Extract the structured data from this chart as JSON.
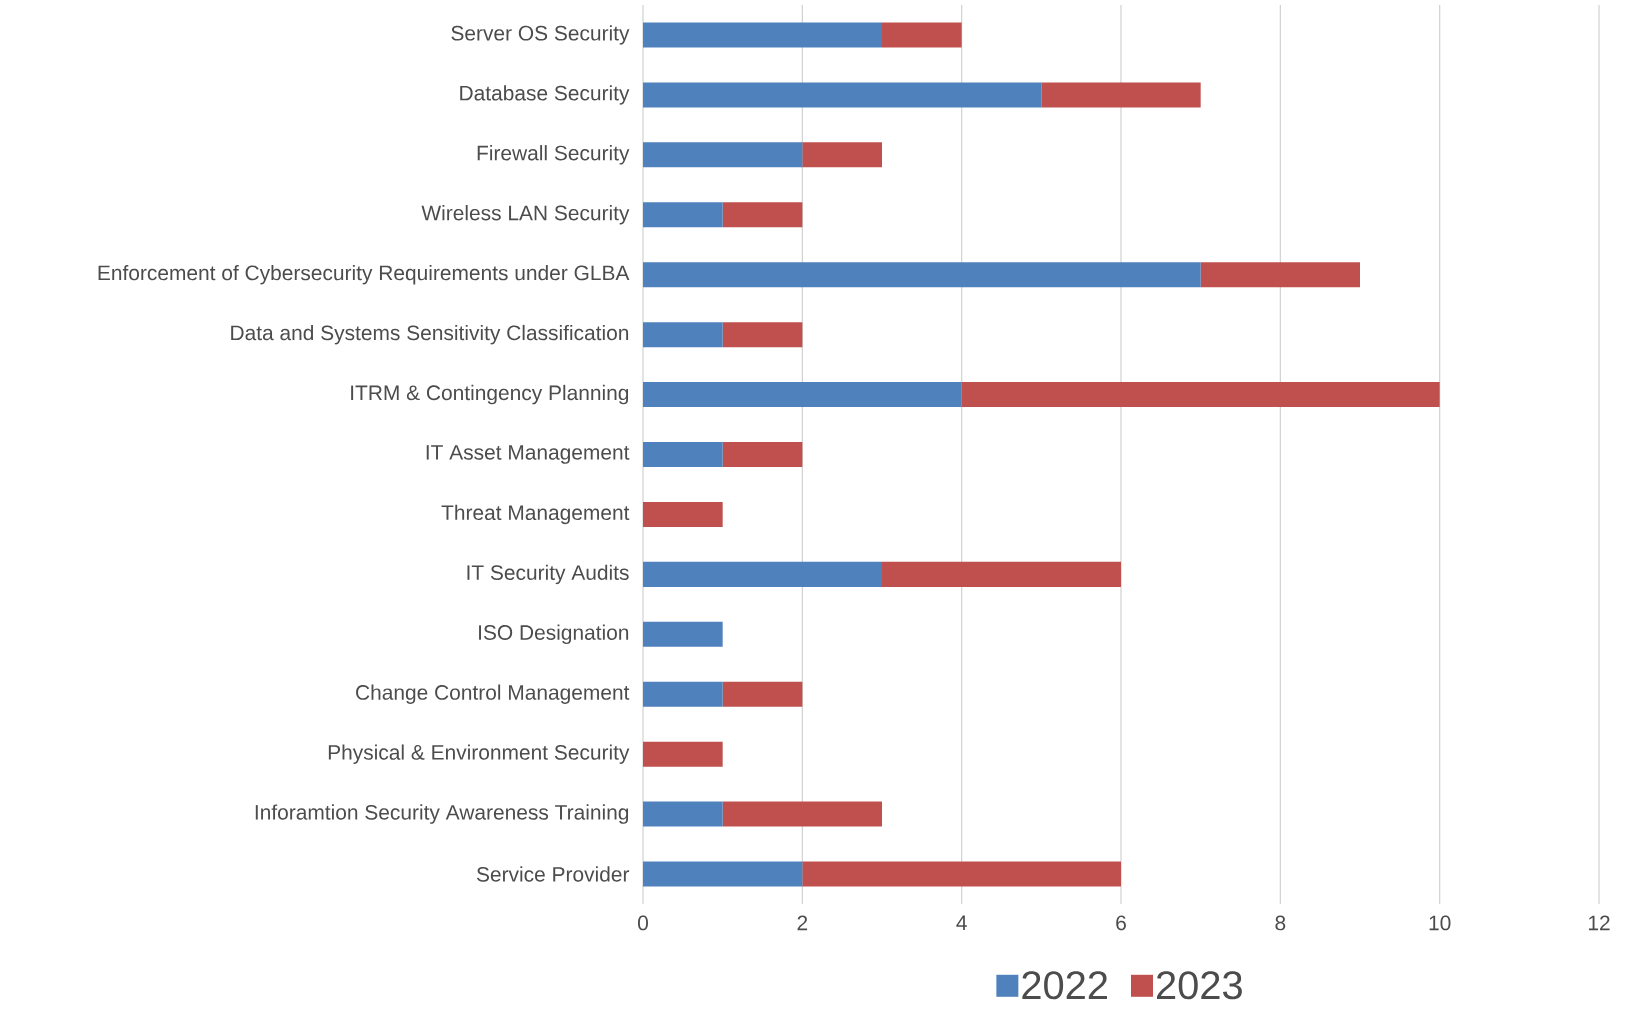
{
  "chart_data": {
    "type": "bar",
    "orientation": "horizontal",
    "stacked": true,
    "categories": [
      "Server OS Security",
      "Database Security",
      "Firewall Security",
      "Wireless LAN Security",
      "Enforcement of Cybersecurity Requirements under GLBA",
      "Data and Systems Sensitivity Classification",
      "ITRM & Contingency Planning",
      "IT Asset Management",
      "Threat Management",
      "IT Security Audits",
      "ISO Designation",
      "Change Control Management",
      "Physical & Environment Security",
      "Inforamtion Security Awareness Training",
      "Service Provider"
    ],
    "series": [
      {
        "name": "2022",
        "color": "#4f81bd",
        "values": [
          3,
          5,
          2,
          1,
          7,
          1,
          4,
          1,
          0,
          3,
          1,
          1,
          0,
          1,
          2
        ]
      },
      {
        "name": "2023",
        "color": "#c0504d",
        "values": [
          1,
          2,
          1,
          1,
          2,
          1,
          6,
          1,
          1,
          3,
          0,
          1,
          1,
          2,
          4
        ]
      }
    ],
    "xlim": [
      0,
      12
    ],
    "xticks": [
      0,
      2,
      4,
      6,
      8,
      10,
      12
    ],
    "grid": "x",
    "legend": "bottom"
  }
}
